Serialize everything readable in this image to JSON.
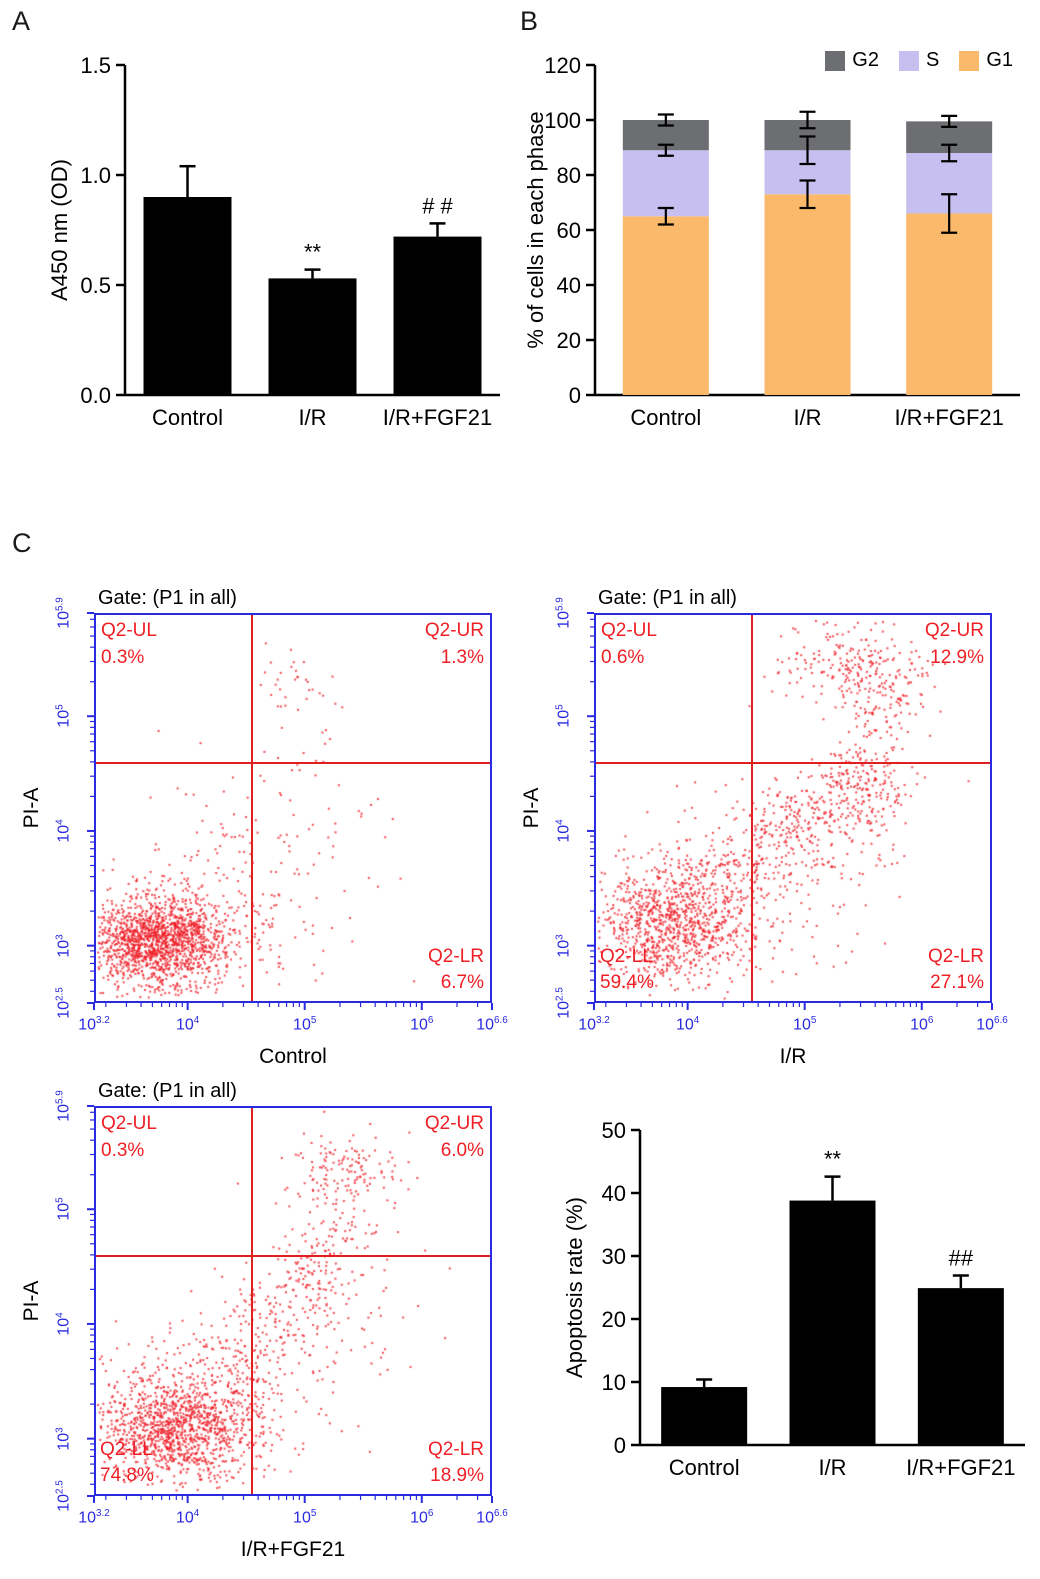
{
  "figure": {
    "panel_labels": {
      "a": "A",
      "b": "B",
      "c": "C"
    }
  },
  "colors": {
    "flow_axis": "#2A2AE0",
    "flow_dot": "#EE1C25",
    "flow_quadrant_line": "#E02020",
    "quadrant_label": "#EF1F26",
    "bar_fill": "#000000",
    "axis_black": "#000000"
  },
  "chart_data": [
    {
      "id": "viability_bar",
      "panel": "A",
      "type": "bar",
      "title": "",
      "ylabel": "A450 nm (OD)",
      "ylim": [
        0,
        1.5
      ],
      "yticks": [
        0,
        0.5,
        1,
        1.5
      ],
      "ytick_labels": [
        "0.0",
        "0.5",
        "1.0",
        "1.5"
      ],
      "categories": [
        "Control",
        "I/R",
        "I/R+FGF21"
      ],
      "values": [
        0.9,
        0.53,
        0.72
      ],
      "errors": [
        0.14,
        0.04,
        0.06
      ],
      "annotations": [
        "",
        "**",
        "# #"
      ],
      "bar_color": "#000000"
    },
    {
      "id": "cell_cycle_stacked",
      "panel": "B",
      "type": "stacked-bar",
      "ylabel": "% of cells in each phase",
      "ylim": [
        0,
        120
      ],
      "yticks": [
        0,
        20,
        40,
        60,
        80,
        100,
        120
      ],
      "ytick_labels": [
        "0",
        "20",
        "40",
        "60",
        "80",
        "100",
        "120"
      ],
      "categories": [
        "Control",
        "I/R",
        "I/R+FGF21"
      ],
      "legend_order": [
        "G2",
        "S",
        "G1"
      ],
      "series": [
        {
          "name": "G1",
          "color": "#FBB96C",
          "values": [
            65,
            73,
            66
          ],
          "errors": [
            3,
            5,
            7
          ]
        },
        {
          "name": "S",
          "color": "#C6BFEF",
          "values": [
            24,
            16,
            22
          ],
          "errors": [
            2,
            5,
            3
          ]
        },
        {
          "name": "G2",
          "color": "#6D6E71",
          "values": [
            11,
            11,
            11.5
          ],
          "errors": [
            2,
            3,
            2
          ]
        }
      ]
    },
    {
      "id": "flow_control",
      "panel": "C",
      "type": "scatter-flow",
      "gate": "Gate: (P1 in all)",
      "xlabel": "Control",
      "ylabel": "PI-A",
      "x_tick_base": "10",
      "x_tick_exponents": [
        "3.2",
        "4",
        "5",
        "6",
        "6.6"
      ],
      "y_tick_exponents": [
        "5.9",
        "5",
        "4",
        "3",
        "2.5"
      ],
      "x_log_range": [
        3.2,
        6.6
      ],
      "y_log_range": [
        2.5,
        5.9
      ],
      "quadrant_lines": {
        "x_log": 4.55,
        "y_log": 4.6
      },
      "quadrants": {
        "UL": {
          "label": "Q2-UL",
          "pct": "0.3%"
        },
        "UR": {
          "label": "Q2-UR",
          "pct": "1.3%"
        },
        "LR": {
          "label": "Q2-LR",
          "pct": "6.7%"
        }
      }
    },
    {
      "id": "flow_ir",
      "panel": "C",
      "type": "scatter-flow",
      "gate": "Gate: (P1 in all)",
      "xlabel": "I/R",
      "ylabel": "PI-A",
      "x_tick_base": "10",
      "x_tick_exponents": [
        "3.2",
        "4",
        "5",
        "6",
        "6.6"
      ],
      "y_tick_exponents": [
        "5.9",
        "5",
        "4",
        "3",
        "2.5"
      ],
      "x_log_range": [
        3.2,
        6.6
      ],
      "y_log_range": [
        2.5,
        5.9
      ],
      "quadrant_lines": {
        "x_log": 4.55,
        "y_log": 4.6
      },
      "quadrants": {
        "UL": {
          "label": "Q2-UL",
          "pct": "0.6%"
        },
        "UR": {
          "label": "Q2-UR",
          "pct": "12.9%"
        },
        "LR": {
          "label": "Q2-LR",
          "pct": "27.1%"
        },
        "LL": {
          "label": "Q2-LL",
          "pct": "59.4%"
        }
      }
    },
    {
      "id": "flow_ir_fgf21",
      "panel": "C",
      "type": "scatter-flow",
      "gate": "Gate: (P1 in all)",
      "xlabel": "I/R+FGF21",
      "ylabel": "PI-A",
      "x_tick_base": "10",
      "x_tick_exponents": [
        "3.2",
        "4",
        "5",
        "6",
        "6.6"
      ],
      "y_tick_exponents": [
        "5.9",
        "5",
        "4",
        "3",
        "2.5"
      ],
      "x_log_range": [
        3.2,
        6.6
      ],
      "y_log_range": [
        2.5,
        5.9
      ],
      "quadrant_lines": {
        "x_log": 4.55,
        "y_log": 4.6
      },
      "quadrants": {
        "UL": {
          "label": "Q2-UL",
          "pct": "0.3%"
        },
        "UR": {
          "label": "Q2-UR",
          "pct": "6.0%"
        },
        "LR": {
          "label": "Q2-LR",
          "pct": "18.9%"
        },
        "LL": {
          "label": "Q2-LL",
          "pct": "74.8%"
        }
      }
    },
    {
      "id": "apoptosis_bar",
      "panel": "C",
      "type": "bar",
      "ylabel": "Apoptosis rate (%)",
      "ylim": [
        0,
        50
      ],
      "yticks": [
        0,
        10,
        20,
        30,
        40,
        50
      ],
      "ytick_labels": [
        "0",
        "10",
        "20",
        "30",
        "40",
        "50"
      ],
      "categories": [
        "Control",
        "I/R",
        "I/R+FGF21"
      ],
      "values": [
        9.2,
        38.8,
        24.9
      ],
      "errors": [
        1.2,
        3.8,
        2.0
      ],
      "annotations": [
        "",
        "**",
        "##"
      ],
      "bar_color": "#000000"
    }
  ]
}
